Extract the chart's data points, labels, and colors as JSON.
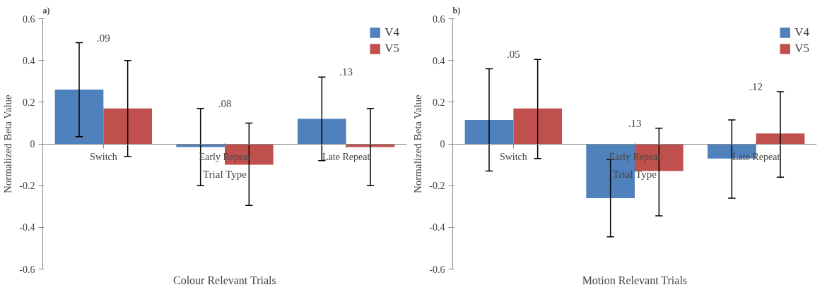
{
  "chart_data": [
    {
      "type": "bar",
      "title": "Colour Relevant Trials",
      "xlabel": "Trial Type",
      "ylabel": "Normalized Beta Value",
      "categories": [
        "Switch",
        "Early Repeat",
        "Late Repeat"
      ],
      "series": [
        {
          "name": "V4",
          "color": "#4f81bd",
          "values": [
            0.26,
            -0.015,
            0.12
          ],
          "errors": [
            [
              0.035,
              0.485
            ],
            [
              -0.2,
              0.17
            ],
            [
              -0.08,
              0.32
            ]
          ]
        },
        {
          "name": "V5",
          "color": "#c0504d",
          "values": [
            0.17,
            -0.1,
            -0.015
          ],
          "errors": [
            [
              -0.06,
              0.4
            ],
            [
              -0.295,
              0.1
            ],
            [
              -0.2,
              0.17
            ]
          ]
        }
      ],
      "ylim": [
        -0.6,
        0.6
      ],
      "yticks": [
        -0.6,
        -0.4,
        -0.2,
        0,
        0.2,
        0.4,
        0.6
      ],
      "grid": false,
      "legend": "top right",
      "annotations": [
        "a)",
        ".09",
        ".08",
        ".13"
      ]
    },
    {
      "type": "bar",
      "title": "Motion Relevant Trials",
      "xlabel": "Trial Type",
      "ylabel": "Normalized Beta Value",
      "categories": [
        "Switch",
        "Early Repeat",
        "Late Repeat"
      ],
      "series": [
        {
          "name": "V4",
          "color": "#4f81bd",
          "values": [
            0.115,
            -0.26,
            -0.07
          ],
          "errors": [
            [
              -0.13,
              0.36
            ],
            [
              -0.445,
              -0.075
            ],
            [
              -0.26,
              0.115
            ]
          ]
        },
        {
          "name": "V5",
          "color": "#c0504d",
          "values": [
            0.17,
            -0.13,
            0.05
          ],
          "errors": [
            [
              -0.07,
              0.405
            ],
            [
              -0.345,
              0.075
            ],
            [
              -0.16,
              0.25
            ]
          ]
        }
      ],
      "ylim": [
        -0.6,
        0.6
      ],
      "yticks": [
        -0.6,
        -0.4,
        -0.2,
        0,
        0.2,
        0.4,
        0.6
      ],
      "grid": false,
      "legend": "top right",
      "annotations": [
        "b)",
        ".05",
        ".13",
        ".12"
      ]
    }
  ]
}
